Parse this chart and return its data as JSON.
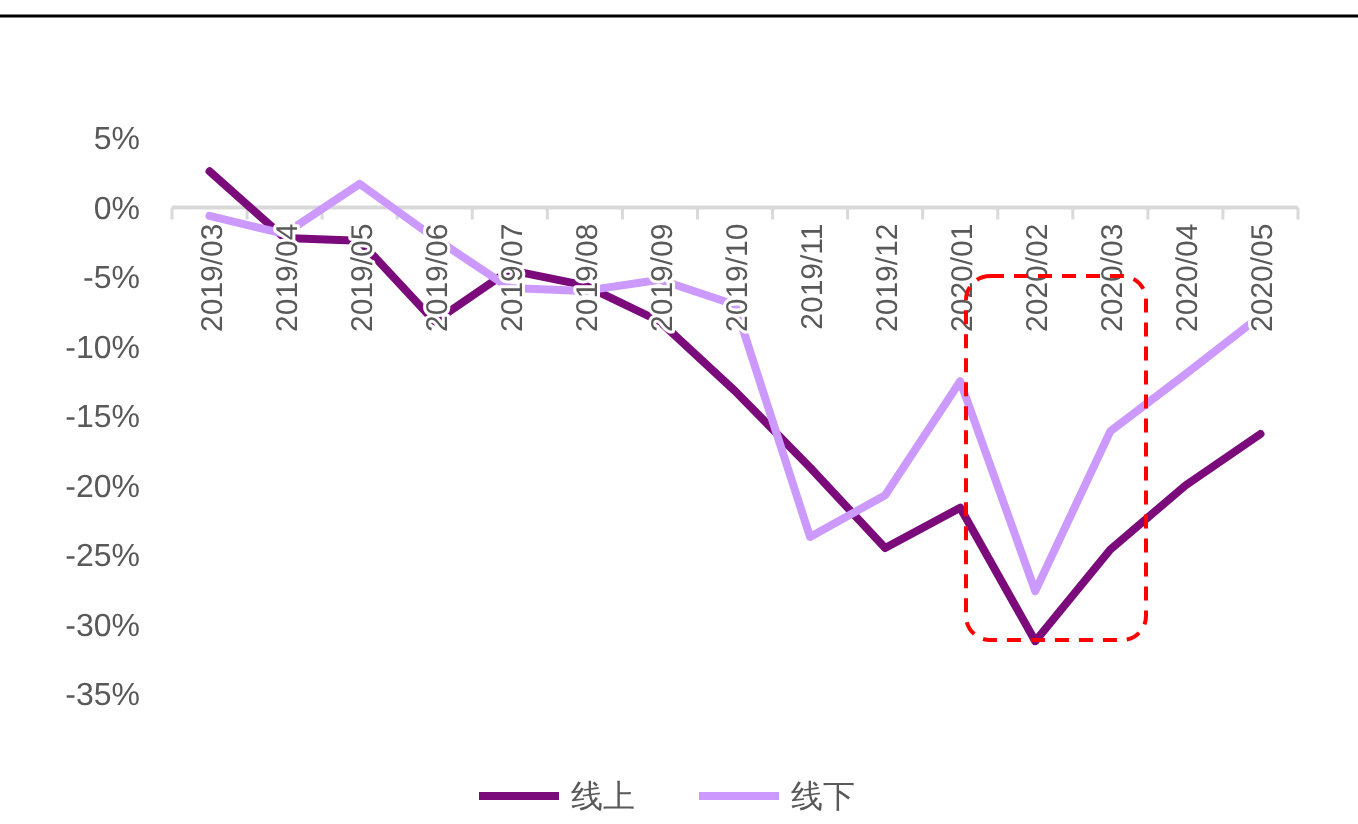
{
  "chart_data": {
    "type": "line",
    "categories": [
      "2019/03",
      "2019/04",
      "2019/05",
      "2019/06",
      "2019/07",
      "2019/08",
      "2019/09",
      "2019/10",
      "2019/11",
      "2019/12",
      "2020/01",
      "2020/02",
      "2020/03",
      "2020/04",
      "2020/05"
    ],
    "series": [
      {
        "name": "线上",
        "color": "#7b0a7b",
        "values": [
          2.6,
          -2.2,
          -2.4,
          -8.2,
          -4.5,
          -5.6,
          -8.2,
          -13.2,
          -18.7,
          -24.5,
          -21.6,
          -31.2,
          -24.6,
          -20,
          -16.3
        ]
      },
      {
        "name": "线下",
        "color": "#cc99ff",
        "values": [
          -0.6,
          -1.9,
          1.7,
          -2.2,
          -5.8,
          -6,
          -5.2,
          -7,
          -23.7,
          -20.7,
          -12.5,
          -27.6,
          -16.1,
          -12,
          -7.8
        ]
      }
    ],
    "ylim": [
      -35,
      5
    ],
    "yticks": [
      {
        "value": 5,
        "label": "5%"
      },
      {
        "value": 0,
        "label": "0%"
      },
      {
        "value": -5,
        "label": "-5%"
      },
      {
        "value": -10,
        "label": "-10%"
      },
      {
        "value": -15,
        "label": "-15%"
      },
      {
        "value": -20,
        "label": "-20%"
      },
      {
        "value": -25,
        "label": "-25%"
      },
      {
        "value": -30,
        "label": "-30%"
      },
      {
        "value": -35,
        "label": "-35%"
      }
    ],
    "grid": false,
    "legend": "bottom",
    "marker": "none",
    "line_style": "solid"
  }
}
